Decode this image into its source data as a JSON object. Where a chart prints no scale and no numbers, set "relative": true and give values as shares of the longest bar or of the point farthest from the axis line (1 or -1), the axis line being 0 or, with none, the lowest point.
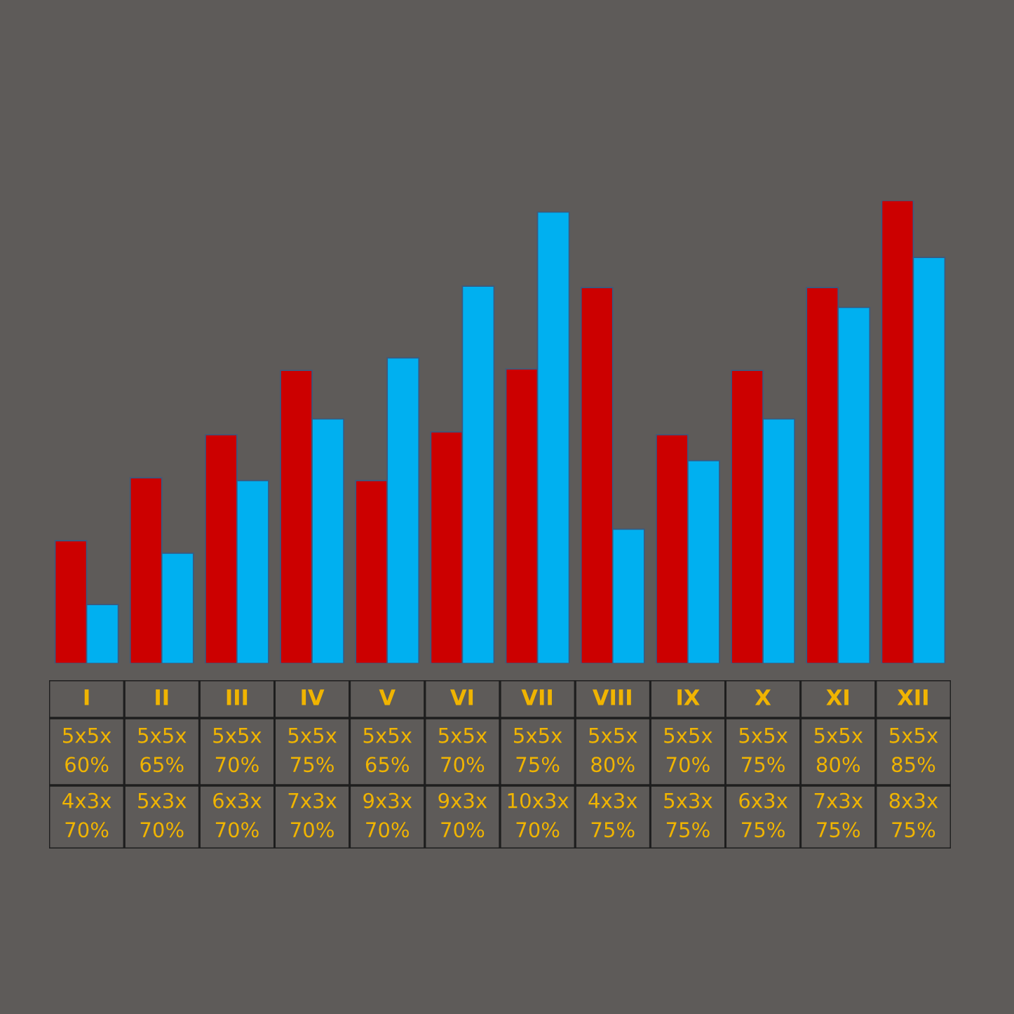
{
  "chart_data": {
    "type": "bar",
    "relative": true,
    "categories": [
      "I",
      "II",
      "III",
      "IV",
      "V",
      "VI",
      "VII",
      "VIII",
      "IX",
      "X",
      "XI",
      "XII"
    ],
    "series": [
      {
        "color": "#cc0000",
        "values": [
          0.265,
          0.401,
          0.494,
          0.633,
          0.395,
          0.5,
          0.636,
          0.812,
          0.494,
          0.633,
          0.812,
          1
        ]
      },
      {
        "color": "#00b0f0",
        "values": [
          0.127,
          0.238,
          0.395,
          0.528,
          0.66,
          0.815,
          0.975,
          0.29,
          0.438,
          0.528,
          0.769,
          0.877
        ]
      }
    ],
    "annotations": [
      "5x5x\n60%",
      "5x5x\n65%",
      "5x5x\n70%",
      "5x5x\n75%",
      "5x5x\n65%",
      "5x5x\n70%",
      "5x5x\n75%",
      "5x5x\n80%",
      "5x5x\n70%",
      "5x5x\n75%",
      "5x5x\n80%",
      "5x5x\n85%",
      "4x3x\n70%",
      "5x3x\n70%",
      "6x3x\n70%",
      "7x3x\n70%",
      "9x3x\n70%",
      "9x3x\n70%",
      "10x3x\n70%",
      "4x3x\n75%",
      "5x3x\n75%",
      "6x3x\n75%",
      "7x3x\n75%",
      "8x3x\n75%"
    ]
  }
}
